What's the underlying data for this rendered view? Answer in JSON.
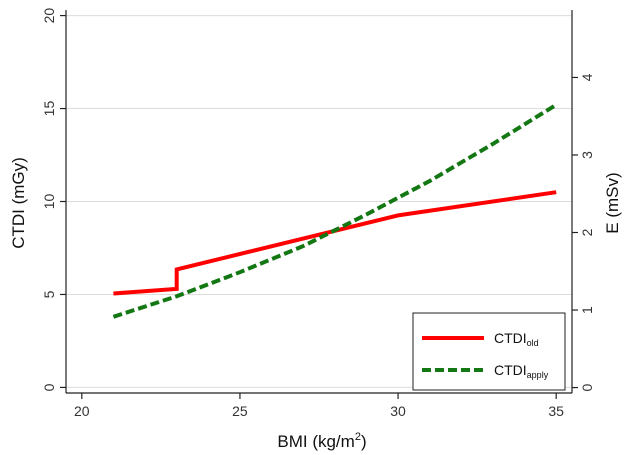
{
  "chart_data": {
    "type": "line",
    "xlabel": "BMI (kg/m",
    "xlabel_sup": "2",
    "xlabel_end": ")",
    "ylabel": "CTDI (mGy)",
    "y2label": "E (mSv)",
    "xlim": [
      19.5,
      35.5
    ],
    "ylim": [
      -0.3,
      20.3
    ],
    "y2lim": [
      -0.07,
      4.87
    ],
    "xticks": [
      20,
      25,
      30,
      35
    ],
    "yticks": [
      0,
      5,
      10,
      15,
      20
    ],
    "y2ticks": [
      0,
      1,
      2,
      3,
      4
    ],
    "grid": "horizontal",
    "legend_position": "bottom-right",
    "colors": {
      "old": "#ff0000",
      "apply": "#137813",
      "grid": "#dcdcdc",
      "axis": "#222222"
    },
    "series": [
      {
        "name": "CTDI",
        "name_sub": "old",
        "style": "solid",
        "x": [
          21,
          23,
          23,
          30,
          35
        ],
        "y": [
          5.05,
          5.3,
          6.35,
          9.25,
          10.5
        ]
      },
      {
        "name": "CTDI",
        "name_sub": "apply",
        "style": "dashed",
        "x": [
          21,
          23,
          25,
          27,
          29,
          31,
          33,
          35
        ],
        "y": [
          3.8,
          4.9,
          6.2,
          7.6,
          9.3,
          11.1,
          13.1,
          15.2
        ]
      }
    ]
  }
}
